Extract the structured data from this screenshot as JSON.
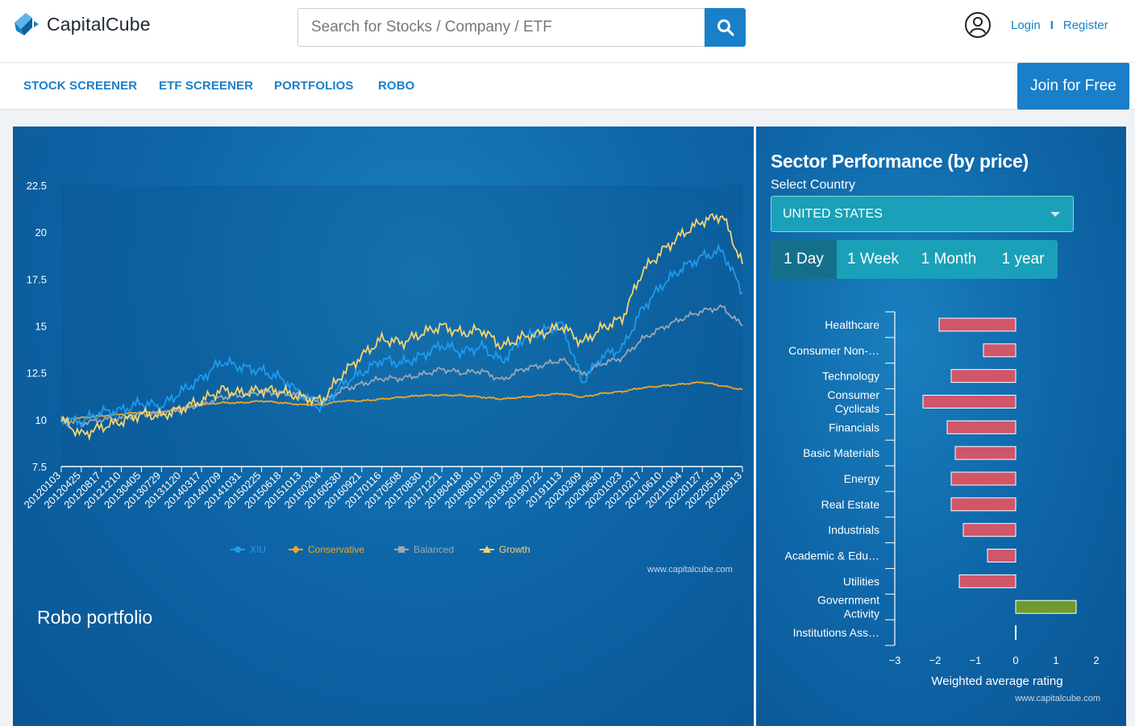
{
  "brand": {
    "name": "CapitalCube"
  },
  "search": {
    "placeholder": "Search for Stocks / Company / ETF"
  },
  "auth": {
    "login": "Login",
    "separator": "I",
    "register": "Register"
  },
  "nav": {
    "items": [
      "STOCK SCREENER",
      "ETF SCREENER",
      "PORTFOLIOS",
      "ROBO"
    ],
    "join": "Join for Free"
  },
  "colors": {
    "brand_blue": "#1a7fc9",
    "xiu": "#1e9bf0",
    "conservative": "#f0a820",
    "balanced": "#9aa7b6",
    "growth": "#f5d46e",
    "negative_bar": "#d0566a",
    "positive_bar": "#6f9a2e"
  },
  "robo": {
    "title": "Robo portfolio",
    "watermark": "www.capitalcube.com"
  },
  "chart_data": [
    {
      "type": "line",
      "y_ticks": [
        "22.5",
        "20",
        "17.5",
        "15",
        "12.5",
        "10",
        "7.5"
      ],
      "ylim": [
        7.5,
        22.5
      ],
      "grid": false,
      "legend_position": "bottom-center",
      "x_ticks": [
        "20120103",
        "20120425",
        "20120817",
        "20121210",
        "20130405",
        "20130729",
        "20131120",
        "20140317",
        "20140709",
        "20141031",
        "20150225",
        "20150618",
        "20151013",
        "20160204",
        "20160530",
        "20160921",
        "20170116",
        "20170508",
        "20170830",
        "20171221",
        "20180418",
        "20180810",
        "20181203",
        "20190328",
        "20190722",
        "20191113",
        "20200309",
        "20200630",
        "20201023",
        "20210217",
        "20210610",
        "20211004",
        "20220127",
        "20220519",
        "20220913"
      ],
      "series": [
        {
          "name": "XIU",
          "values": [
            10,
            9.9,
            10.4,
            10.5,
            10.9,
            10.7,
            11.5,
            12.2,
            13.1,
            12.8,
            12.6,
            12.2,
            11.3,
            10.6,
            11.9,
            12.5,
            13.2,
            13.0,
            13.4,
            14.0,
            13.6,
            13.9,
            13.1,
            14.3,
            14.7,
            15.1,
            12.0,
            13.4,
            13.8,
            15.9,
            17.2,
            18.1,
            18.7,
            19.0,
            16.8
          ]
        },
        {
          "name": "Conservative",
          "values": [
            10,
            10.1,
            10.2,
            10.3,
            10.4,
            10.4,
            10.6,
            10.8,
            10.9,
            10.9,
            11.0,
            10.9,
            10.8,
            10.8,
            11.0,
            11.0,
            11.1,
            11.2,
            11.3,
            11.3,
            11.3,
            11.2,
            11.1,
            11.2,
            11.3,
            11.4,
            11.2,
            11.4,
            11.5,
            11.7,
            11.8,
            11.9,
            12.0,
            11.8,
            11.6
          ]
        },
        {
          "name": "Balanced",
          "values": [
            10,
            9.8,
            10.0,
            10.1,
            10.3,
            10.3,
            10.6,
            10.8,
            11.2,
            11.3,
            11.5,
            11.4,
            11.3,
            10.9,
            11.6,
            11.9,
            12.2,
            12.2,
            12.4,
            12.7,
            12.5,
            12.6,
            12.1,
            12.7,
            12.9,
            13.2,
            12.4,
            13.0,
            13.3,
            14.3,
            14.9,
            15.4,
            15.8,
            16.0,
            15.0
          ]
        },
        {
          "name": "Growth",
          "values": [
            10,
            9.2,
            9.6,
            9.9,
            10.3,
            10.2,
            10.6,
            11.0,
            11.6,
            11.4,
            11.6,
            11.5,
            11.2,
            11.0,
            12.4,
            13.4,
            14.3,
            14.1,
            14.6,
            15.0,
            14.6,
            14.8,
            13.9,
            14.4,
            14.6,
            15.0,
            14.1,
            14.9,
            15.4,
            17.9,
            19.0,
            19.9,
            20.6,
            20.9,
            18.3
          ]
        }
      ]
    },
    {
      "type": "bar",
      "title": "Sector Performance (by price)",
      "xlabel": "Weighted average rating",
      "categories": [
        "Healthcare",
        "Consumer Non-…",
        "Technology",
        "Consumer Cyclicals",
        "Financials",
        "Basic Materials",
        "Energy",
        "Real Estate",
        "Industrials",
        "Academic & Edu…",
        "Utilities",
        "Government Activity",
        "Institutions Ass…"
      ],
      "values": [
        -1.9,
        -0.8,
        -1.6,
        -2.3,
        -1.7,
        -1.5,
        -1.6,
        -1.6,
        -1.3,
        -0.7,
        -1.4,
        1.5,
        0.0
      ],
      "xlim": [
        -3,
        2
      ],
      "x_ticks": [
        "-3",
        "-2",
        "-1",
        "0",
        "1",
        "2"
      ],
      "watermark": "www.capitalcube.com"
    }
  ],
  "sector": {
    "title": "Sector Performance (by price)",
    "select_label": "Select Country",
    "country": "UNITED STATES",
    "tabs": [
      "1 Day",
      "1 Week",
      "1 Month",
      "1 year"
    ],
    "active_tab": "1 Day"
  }
}
